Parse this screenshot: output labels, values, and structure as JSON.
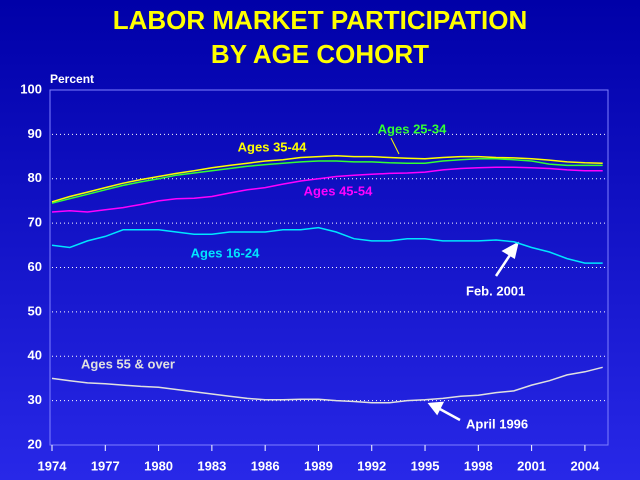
{
  "chart_data": {
    "type": "line",
    "title": [
      "LABOR MARKET PARTICIPATION",
      "BY AGE COHORT"
    ],
    "y_axis_label": "Percent",
    "x": [
      1974,
      1975,
      1976,
      1977,
      1978,
      1979,
      1980,
      1981,
      1982,
      1983,
      1984,
      1985,
      1986,
      1987,
      1988,
      1989,
      1990,
      1991,
      1992,
      1993,
      1994,
      1995,
      1996,
      1997,
      1998,
      1999,
      2000,
      2001,
      2002,
      2003,
      2004,
      2005
    ],
    "series": [
      {
        "name": "Ages 25-34",
        "color": "#33ff33",
        "values": [
          74.5,
          75.5,
          76.5,
          77.5,
          78.5,
          79.3,
          80,
          80.8,
          81.3,
          81.8,
          82.3,
          82.8,
          83.2,
          83.5,
          83.8,
          84,
          84,
          83.8,
          83.8,
          83.6,
          83.5,
          83.5,
          84,
          84.3,
          84.5,
          84.5,
          84.3,
          84,
          83.3,
          83,
          83,
          83
        ]
      },
      {
        "name": "Ages 35-44",
        "color": "#ffff00",
        "values": [
          74.8,
          76,
          77,
          78,
          79,
          79.8,
          80.5,
          81.2,
          81.8,
          82.5,
          83,
          83.5,
          84,
          84.3,
          84.8,
          85,
          85.2,
          85,
          85,
          84.8,
          84.6,
          84.5,
          84.8,
          85,
          85,
          84.8,
          84.7,
          84.5,
          84.2,
          83.8,
          83.6,
          83.5
        ]
      },
      {
        "name": "Ages 45-54",
        "color": "#ff00ff",
        "values": [
          72.5,
          72.8,
          72.5,
          73,
          73.5,
          74.2,
          75,
          75.5,
          75.6,
          76,
          76.8,
          77.5,
          78,
          78.8,
          79.5,
          80,
          80.5,
          80.8,
          81,
          81.2,
          81.3,
          81.5,
          82,
          82.3,
          82.5,
          82.6,
          82.6,
          82.5,
          82.3,
          82,
          81.8,
          81.8
        ]
      },
      {
        "name": "Ages 16-24",
        "color": "#00e5ff",
        "values": [
          65,
          64.5,
          66,
          67,
          68.5,
          68.5,
          68.5,
          68,
          67.5,
          67.5,
          68,
          68,
          68,
          68.5,
          68.5,
          69,
          68,
          66.5,
          66,
          66,
          66.5,
          66.5,
          66,
          66,
          66,
          66.2,
          65.8,
          64.5,
          63.5,
          62,
          61,
          61
        ]
      },
      {
        "name": "Ages 55 & over",
        "color": "#e0e0e0",
        "values": [
          35,
          34.5,
          34,
          33.8,
          33.5,
          33.2,
          33,
          32.5,
          32,
          31.5,
          31,
          30.5,
          30.2,
          30.2,
          30.3,
          30.3,
          30,
          29.8,
          29.5,
          29.5,
          30,
          30.2,
          30.5,
          31,
          31.2,
          31.8,
          32.2,
          33.5,
          34.5,
          35.8,
          36.5,
          37.5
        ]
      }
    ],
    "annotations": [
      "Feb. 2001",
      "April 1996"
    ],
    "xlim": [
      1974,
      2005.3
    ],
    "ylim": [
      20,
      100
    ],
    "xticks": [
      1974,
      1977,
      1980,
      1983,
      1986,
      1989,
      1992,
      1995,
      1998,
      2001,
      2004
    ],
    "yticks": [
      20,
      30,
      40,
      50,
      60,
      70,
      80,
      90,
      100
    ],
    "grid": true
  }
}
